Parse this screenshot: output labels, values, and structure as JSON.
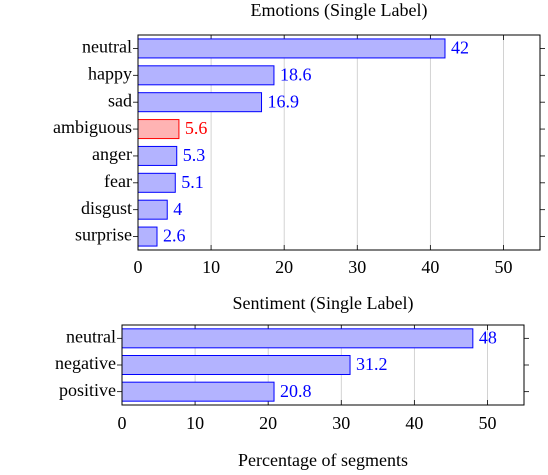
{
  "chart_data": [
    {
      "type": "barh",
      "title": "Emotions (Single Label)",
      "categories": [
        "neutral",
        "happy",
        "sad",
        "ambiguous",
        "anger",
        "fear",
        "disgust",
        "surprise"
      ],
      "values": [
        42,
        18.6,
        16.9,
        5.6,
        5.3,
        5.1,
        4,
        2.6
      ],
      "colors": [
        "#b3b3ff",
        "#b3b3ff",
        "#b3b3ff",
        "#ffb3b3",
        "#b3b3ff",
        "#b3b3ff",
        "#b3b3ff",
        "#b3b3ff"
      ],
      "edgecolors": [
        "#0000ff",
        "#0000ff",
        "#0000ff",
        "#ff0000",
        "#0000ff",
        "#0000ff",
        "#0000ff",
        "#0000ff"
      ],
      "xlim": [
        0,
        55
      ],
      "xticks": [
        0,
        10,
        20,
        30,
        40,
        50
      ],
      "grid": true
    },
    {
      "type": "barh",
      "title": "Sentiment (Single Label)",
      "categories": [
        "neutral",
        "negative",
        "positive"
      ],
      "values": [
        48,
        31.2,
        20.8
      ],
      "colors": [
        "#b3b3ff",
        "#b3b3ff",
        "#b3b3ff"
      ],
      "edgecolors": [
        "#0000ff",
        "#0000ff",
        "#0000ff"
      ],
      "xlim": [
        0,
        55
      ],
      "xticks": [
        0,
        10,
        20,
        30,
        40,
        50
      ],
      "grid": true,
      "xlabel": "Percentage of segments"
    }
  ]
}
